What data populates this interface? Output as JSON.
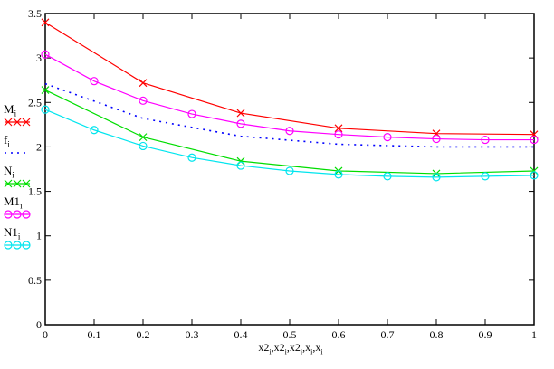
{
  "chart_data": {
    "type": "line",
    "title": "",
    "xlabel_parts": [
      "x2",
      "x2",
      "x2",
      "x",
      "x"
    ],
    "xlabel_sub": "i",
    "ylabel": "",
    "xlim": [
      0,
      1
    ],
    "ylim": [
      0,
      3.5
    ],
    "xticks": [
      "0",
      "0.1",
      "0.2",
      "0.3",
      "0.4",
      "0.5",
      "0.6",
      "0.7",
      "0.8",
      "0.9",
      "1"
    ],
    "yticks": [
      "0",
      "0.5",
      "1",
      "1.5",
      "2",
      "2.5",
      "3",
      "3.5"
    ],
    "grid": false,
    "legend_position": "left",
    "series": [
      {
        "name": "M",
        "sub": "i",
        "color": "#ff0000",
        "marker": "x",
        "dash": false,
        "x": [
          0,
          0.2,
          0.4,
          0.6,
          0.8,
          1.0
        ],
        "values": [
          3.4,
          2.72,
          2.38,
          2.21,
          2.15,
          2.14
        ]
      },
      {
        "name": "f",
        "sub": "i",
        "color": "#0000ff",
        "marker": "none",
        "dash": true,
        "x": [
          0,
          0.2,
          0.4,
          0.6,
          0.8,
          1.0
        ],
        "values": [
          2.71,
          2.32,
          2.12,
          2.03,
          2.0,
          2.0
        ]
      },
      {
        "name": "N",
        "sub": "i",
        "color": "#00dd00",
        "marker": "x",
        "dash": false,
        "x": [
          0,
          0.2,
          0.4,
          0.6,
          0.8,
          1.0
        ],
        "values": [
          2.64,
          2.11,
          1.84,
          1.73,
          1.7,
          1.73
        ]
      },
      {
        "name": "M1",
        "sub": "i",
        "color": "#ff00ff",
        "marker": "o",
        "dash": false,
        "x": [
          0,
          0.1,
          0.2,
          0.3,
          0.4,
          0.5,
          0.6,
          0.7,
          0.8,
          0.9,
          1.0
        ],
        "values": [
          3.04,
          2.74,
          2.52,
          2.37,
          2.26,
          2.18,
          2.14,
          2.11,
          2.09,
          2.08,
          2.08
        ]
      },
      {
        "name": "N1",
        "sub": "i",
        "color": "#00e5ee",
        "marker": "o",
        "dash": false,
        "x": [
          0,
          0.1,
          0.2,
          0.3,
          0.4,
          0.5,
          0.6,
          0.7,
          0.8,
          0.9,
          1.0
        ],
        "values": [
          2.42,
          2.19,
          2.01,
          1.88,
          1.79,
          1.73,
          1.69,
          1.67,
          1.66,
          1.67,
          1.68
        ]
      }
    ]
  }
}
